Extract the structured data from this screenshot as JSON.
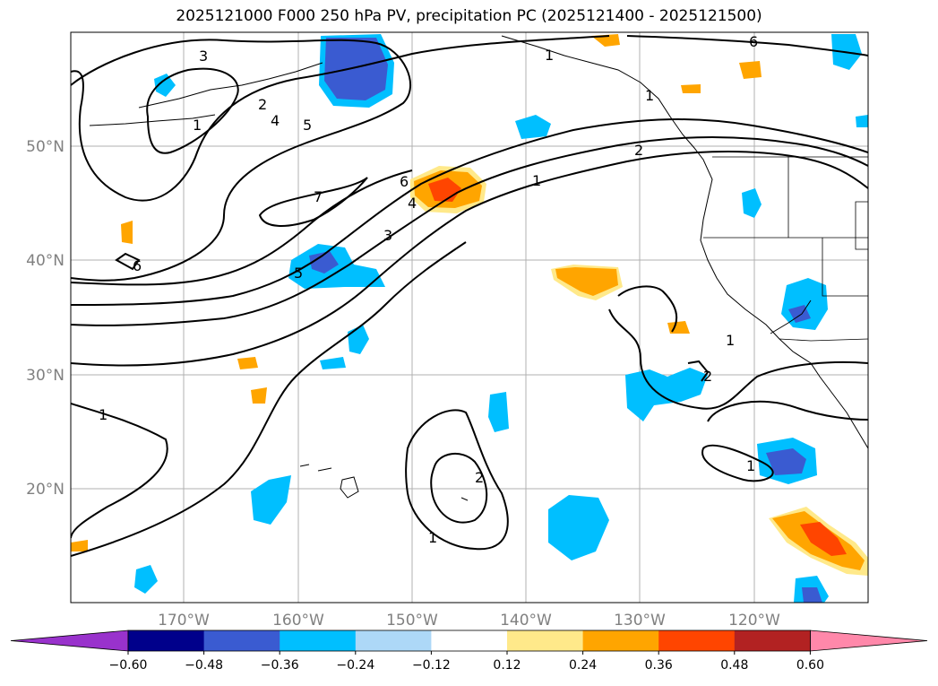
{
  "title": "2025121000 F000 250 hPa PV, precipitation PC (2025121400 - 2025121500)",
  "latitude_labels": [
    "50°N",
    "40°N",
    "30°N",
    "20°N"
  ],
  "longitude_labels": [
    "170°W",
    "160°W",
    "150°W",
    "140°W",
    "130°W",
    "120°W"
  ],
  "pv_contour_labels": [
    "3",
    "2",
    "1",
    "4",
    "5",
    "7",
    "6",
    "6",
    "4",
    "3",
    "5",
    "6",
    "2",
    "1",
    "1",
    "1",
    "2",
    "1",
    "1",
    "2",
    "1",
    "1"
  ],
  "colorbar": {
    "ticks": [
      "−0.60",
      "−0.48",
      "−0.36",
      "−0.24",
      "−0.12",
      "0.12",
      "0.24",
      "0.36",
      "0.48",
      "0.60"
    ],
    "colors": [
      "#9932cc",
      "#00008b",
      "#3a5bd1",
      "#00bfff",
      "#add8f7",
      "#ffffff",
      "#ffe98a",
      "#ffa500",
      "#ff4500",
      "#b22222",
      "#ff88aa"
    ]
  },
  "colors": {
    "pv_contour": "#000000",
    "coastline": "#000000",
    "grid": "#b0b0b0",
    "axis_label": "#808080"
  }
}
